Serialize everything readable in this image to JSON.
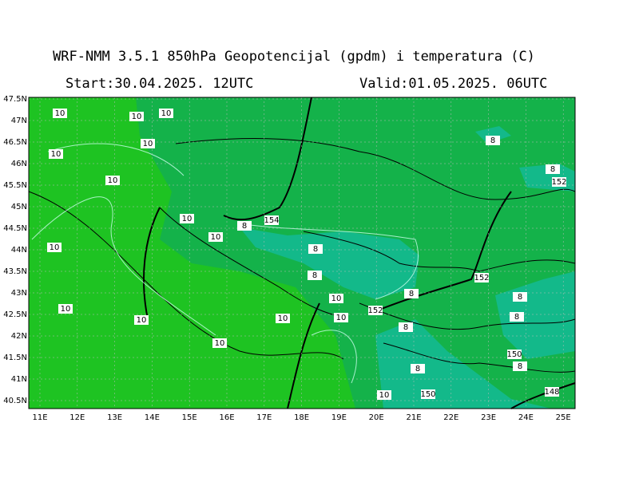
{
  "header": {
    "title": "WRF-NMM 3.5.1  850hPa Geopotencijal (gpdm) i temperatura (C)",
    "start": "Start:30.04.2025.  12UTC",
    "valid": "Valid:01.05.2025.  06UTC"
  },
  "map": {
    "lat_labels": [
      "47.5N",
      "47N",
      "46.5N",
      "46N",
      "45.5N",
      "45N",
      "44.5N",
      "44N",
      "43.5N",
      "43N",
      "42.5N",
      "42N",
      "41.5N",
      "41N",
      "40.5N"
    ],
    "lon_labels": [
      "11E",
      "12E",
      "13E",
      "14E",
      "15E",
      "16E",
      "17E",
      "18E",
      "19E",
      "20E",
      "21E",
      "22E",
      "23E",
      "24E",
      "25E"
    ],
    "contour_labels": [
      "10",
      "10",
      "10",
      "10",
      "10",
      "10",
      "10",
      "10",
      "10",
      "10",
      "10",
      "10",
      "10",
      "10",
      "10",
      "10",
      "8",
      "8",
      "8",
      "8",
      "8",
      "8",
      "8",
      "8",
      "8",
      "8",
      "8",
      "154",
      "152",
      "152",
      "152",
      "150",
      "150",
      "148"
    ]
  }
}
